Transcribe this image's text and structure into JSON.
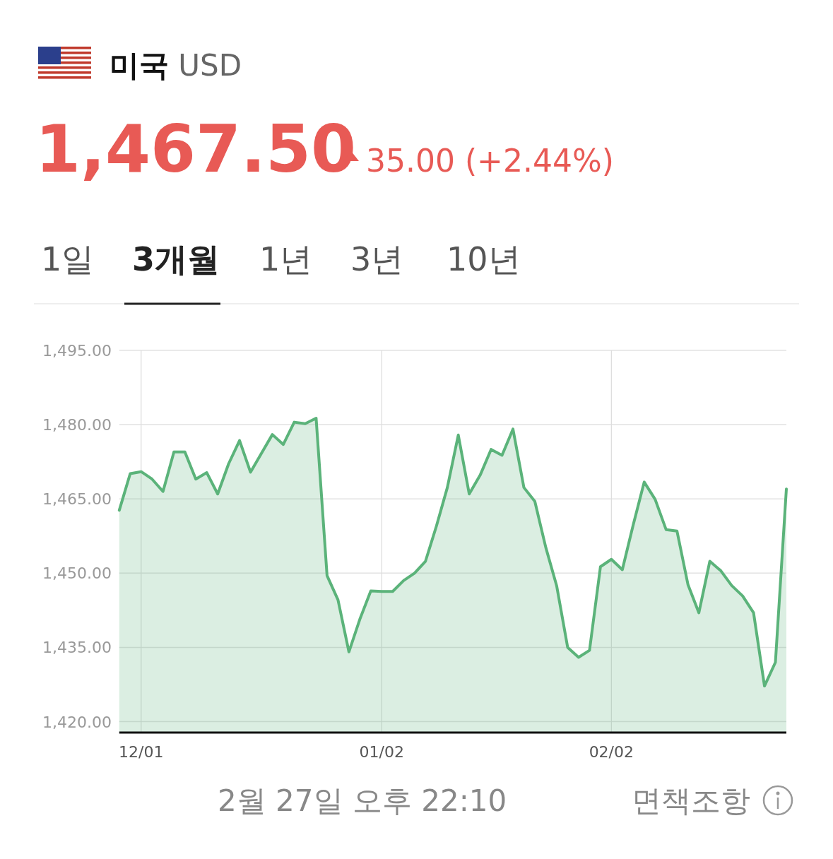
{
  "chart_data": {
    "type": "area",
    "title": "**미국** USD",
    "subtitle": "1,467.50",
    "annotations": [
      "1일",
      "3개월",
      "1년",
      "3년",
      "10년",
      "35.00 (+2.44%)",
      "2월 27일 오후 22:10",
      "면책조항"
    ],
    "categories": [
      null,
      null,
      "12/01",
      null,
      null,
      null,
      null,
      null,
      null,
      null,
      null,
      null,
      null,
      null,
      null,
      null,
      null,
      null,
      null,
      null,
      null,
      null,
      null,
      null,
      "01/02",
      null,
      null,
      null,
      null,
      null,
      null,
      null,
      null,
      null,
      null,
      null,
      null,
      null,
      null,
      null,
      null,
      null,
      null,
      null,
      null,
      "02/02",
      null,
      null,
      null,
      null,
      null,
      null,
      null,
      null,
      null,
      null,
      null,
      null,
      null,
      null,
      null,
      null
    ],
    "series": [
      {
        "color": "#5bb37a",
        "values": [
          1462.7,
          1470.1,
          1470.5,
          1469.0,
          1466.5,
          1474.5,
          1474.5,
          1469.0,
          1470.3,
          1466.0,
          1472.1,
          1476.8,
          1470.4,
          1474.2,
          1478.0,
          1476.0,
          1480.5,
          1480.2,
          1481.3,
          1449.5,
          1444.6,
          1434.1,
          1440.7,
          1446.4,
          1446.3,
          1446.3,
          1448.5,
          1450.0,
          1452.4,
          1459.5,
          1467.3,
          1477.9,
          1466.0,
          1469.8,
          1475.0,
          1473.8,
          1479.1,
          1467.3,
          1464.5,
          1455.2,
          1447.4,
          1435.0,
          1433.0,
          1434.4,
          1451.3,
          1452.8,
          1450.7,
          1459.8,
          1468.4,
          1464.9,
          1458.8,
          1458.5,
          1447.7,
          1442.0,
          1452.4,
          1450.5,
          1447.5,
          1445.4,
          1442.0,
          1427.2,
          1432.0,
          1467.0
        ]
      }
    ],
    "ylim": [
      1417.8,
      1495
    ],
    "yticks": [
      {
        "value": 1420,
        "label": "1,420.00"
      },
      {
        "value": 1435,
        "label": "1,435.00"
      },
      {
        "value": 1450,
        "label": "1,450.00"
      },
      {
        "value": 1465,
        "label": "1,465.00"
      },
      {
        "value": 1480,
        "label": "1,480.00"
      },
      {
        "value": 1495,
        "label": "1,495.00"
      }
    ],
    "grid": true
  }
}
